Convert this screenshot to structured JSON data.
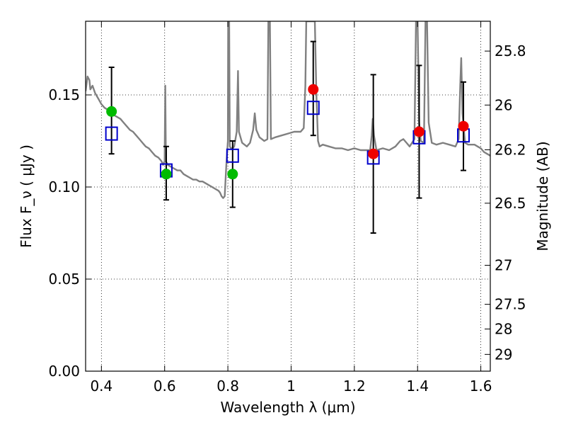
{
  "chart_data": {
    "type": "scatter",
    "xlabel": "Wavelength  λ (μm)",
    "ylabel": "Flux  F_ν ( μJy )",
    "ylabel_right": "Magnitude (AB)",
    "xlim": [
      0.35,
      1.63
    ],
    "ylim": [
      0.0,
      0.19
    ],
    "x_ticks": [
      {
        "value": 0.4,
        "label": "0.4"
      },
      {
        "value": 0.6,
        "label": "0.6"
      },
      {
        "value": 0.8,
        "label": "0.8"
      },
      {
        "value": 1.0,
        "label": "1"
      },
      {
        "value": 1.2,
        "label": "1.2"
      },
      {
        "value": 1.4,
        "label": "1.4"
      },
      {
        "value": 1.6,
        "label": "1.6"
      }
    ],
    "y_ticks": [
      {
        "value": 0.0,
        "label": "0.00"
      },
      {
        "value": 0.05,
        "label": "0.05"
      },
      {
        "value": 0.1,
        "label": "0.10"
      },
      {
        "value": 0.15,
        "label": "0.15"
      }
    ],
    "right_ticks": [
      {
        "flux": 0.1738,
        "label": "25.8"
      },
      {
        "flux": 0.1445,
        "label": "26"
      },
      {
        "flux": 0.1202,
        "label": "26.2"
      },
      {
        "flux": 0.0912,
        "label": "26.5"
      },
      {
        "flux": 0.0575,
        "label": "27"
      },
      {
        "flux": 0.0363,
        "label": "27.5"
      },
      {
        "flux": 0.0229,
        "label": "28"
      },
      {
        "flux": 0.0091,
        "label": "29"
      }
    ],
    "grid": true,
    "series": [
      {
        "kind": "model-sed-line",
        "color": "#808080",
        "points": [
          [
            0.35,
            0.152
          ],
          [
            0.356,
            0.16
          ],
          [
            0.362,
            0.158
          ],
          [
            0.365,
            0.153
          ],
          [
            0.372,
            0.155
          ],
          [
            0.38,
            0.151
          ],
          [
            0.39,
            0.148
          ],
          [
            0.4,
            0.145
          ],
          [
            0.41,
            0.143
          ],
          [
            0.42,
            0.142
          ],
          [
            0.43,
            0.14
          ],
          [
            0.44,
            0.139
          ],
          [
            0.45,
            0.138
          ],
          [
            0.46,
            0.137
          ],
          [
            0.47,
            0.135
          ],
          [
            0.48,
            0.133
          ],
          [
            0.49,
            0.131
          ],
          [
            0.5,
            0.13
          ],
          [
            0.51,
            0.128
          ],
          [
            0.52,
            0.126
          ],
          [
            0.53,
            0.124
          ],
          [
            0.54,
            0.122
          ],
          [
            0.55,
            0.121
          ],
          [
            0.56,
            0.119
          ],
          [
            0.57,
            0.117
          ],
          [
            0.58,
            0.116
          ],
          [
            0.59,
            0.114
          ],
          [
            0.595,
            0.112
          ],
          [
            0.6,
            0.114
          ],
          [
            0.602,
            0.155
          ],
          [
            0.604,
            0.114
          ],
          [
            0.61,
            0.112
          ],
          [
            0.62,
            0.111
          ],
          [
            0.63,
            0.11
          ],
          [
            0.64,
            0.109
          ],
          [
            0.65,
            0.109
          ],
          [
            0.66,
            0.107
          ],
          [
            0.67,
            0.106
          ],
          [
            0.68,
            0.105
          ],
          [
            0.69,
            0.104
          ],
          [
            0.7,
            0.104
          ],
          [
            0.71,
            0.103
          ],
          [
            0.72,
            0.103
          ],
          [
            0.73,
            0.102
          ],
          [
            0.74,
            0.101
          ],
          [
            0.75,
            0.1
          ],
          [
            0.76,
            0.099
          ],
          [
            0.77,
            0.098
          ],
          [
            0.775,
            0.097
          ],
          [
            0.78,
            0.095
          ],
          [
            0.785,
            0.094
          ],
          [
            0.79,
            0.095
          ],
          [
            0.795,
            0.112
          ],
          [
            0.8,
            0.125
          ],
          [
            0.801,
            0.19
          ],
          [
            0.804,
            0.19
          ],
          [
            0.806,
            0.122
          ],
          [
            0.81,
            0.121
          ],
          [
            0.815,
            0.121
          ],
          [
            0.82,
            0.122
          ],
          [
            0.828,
            0.13
          ],
          [
            0.832,
            0.163
          ],
          [
            0.835,
            0.13
          ],
          [
            0.845,
            0.124
          ],
          [
            0.86,
            0.122
          ],
          [
            0.87,
            0.124
          ],
          [
            0.88,
            0.131
          ],
          [
            0.885,
            0.14
          ],
          [
            0.89,
            0.131
          ],
          [
            0.9,
            0.127
          ],
          [
            0.915,
            0.125
          ],
          [
            0.925,
            0.126
          ],
          [
            0.928,
            0.19
          ],
          [
            0.933,
            0.19
          ],
          [
            0.936,
            0.126
          ],
          [
            0.95,
            0.127
          ],
          [
            0.97,
            0.128
          ],
          [
            0.99,
            0.129
          ],
          [
            1.01,
            0.13
          ],
          [
            1.03,
            0.13
          ],
          [
            1.04,
            0.132
          ],
          [
            1.045,
            0.155
          ],
          [
            1.048,
            0.19
          ],
          [
            1.075,
            0.19
          ],
          [
            1.08,
            0.15
          ],
          [
            1.085,
            0.125
          ],
          [
            1.09,
            0.122
          ],
          [
            1.1,
            0.123
          ],
          [
            1.12,
            0.122
          ],
          [
            1.14,
            0.121
          ],
          [
            1.16,
            0.121
          ],
          [
            1.18,
            0.12
          ],
          [
            1.2,
            0.121
          ],
          [
            1.22,
            0.12
          ],
          [
            1.24,
            0.12
          ],
          [
            1.25,
            0.12
          ],
          [
            1.255,
            0.128
          ],
          [
            1.258,
            0.137
          ],
          [
            1.262,
            0.128
          ],
          [
            1.27,
            0.12
          ],
          [
            1.29,
            0.121
          ],
          [
            1.31,
            0.12
          ],
          [
            1.33,
            0.122
          ],
          [
            1.345,
            0.125
          ],
          [
            1.355,
            0.126
          ],
          [
            1.365,
            0.124
          ],
          [
            1.375,
            0.122
          ],
          [
            1.39,
            0.126
          ],
          [
            1.395,
            0.19
          ],
          [
            1.4,
            0.19
          ],
          [
            1.405,
            0.135
          ],
          [
            1.41,
            0.125
          ],
          [
            1.42,
            0.124
          ],
          [
            1.425,
            0.19
          ],
          [
            1.43,
            0.19
          ],
          [
            1.435,
            0.135
          ],
          [
            1.445,
            0.124
          ],
          [
            1.46,
            0.123
          ],
          [
            1.48,
            0.124
          ],
          [
            1.5,
            0.123
          ],
          [
            1.52,
            0.122
          ],
          [
            1.53,
            0.126
          ],
          [
            1.535,
            0.155
          ],
          [
            1.538,
            0.17
          ],
          [
            1.542,
            0.14
          ],
          [
            1.55,
            0.124
          ],
          [
            1.56,
            0.123
          ],
          [
            1.58,
            0.123
          ],
          [
            1.59,
            0.122
          ],
          [
            1.6,
            0.121
          ],
          [
            1.61,
            0.119
          ],
          [
            1.62,
            0.118
          ],
          [
            1.63,
            0.117
          ]
        ]
      },
      {
        "kind": "model-boxes",
        "color": "#0000cc",
        "points": [
          [
            0.432,
            0.129
          ],
          [
            0.605,
            0.109
          ],
          [
            0.815,
            0.117
          ],
          [
            1.07,
            0.143
          ],
          [
            1.26,
            0.116
          ],
          [
            1.405,
            0.127
          ],
          [
            1.545,
            0.128
          ]
        ]
      },
      {
        "kind": "observed-green",
        "color": "#00bb00",
        "points": [
          {
            "x": 0.432,
            "y": 0.141,
            "err_lo": 0.118,
            "err_hi": 0.165
          },
          {
            "x": 0.605,
            "y": 0.107,
            "err_lo": 0.093,
            "err_hi": 0.122
          },
          {
            "x": 0.815,
            "y": 0.107,
            "err_lo": 0.089,
            "err_hi": 0.125
          }
        ]
      },
      {
        "kind": "observed-red",
        "color": "#ee0000",
        "points": [
          {
            "x": 1.07,
            "y": 0.153,
            "err_lo": 0.128,
            "err_hi": 0.179
          },
          {
            "x": 1.26,
            "y": 0.118,
            "err_lo": 0.075,
            "err_hi": 0.161
          },
          {
            "x": 1.405,
            "y": 0.13,
            "err_lo": 0.094,
            "err_hi": 0.166
          },
          {
            "x": 1.545,
            "y": 0.133,
            "err_lo": 0.109,
            "err_hi": 0.157
          }
        ]
      }
    ]
  }
}
